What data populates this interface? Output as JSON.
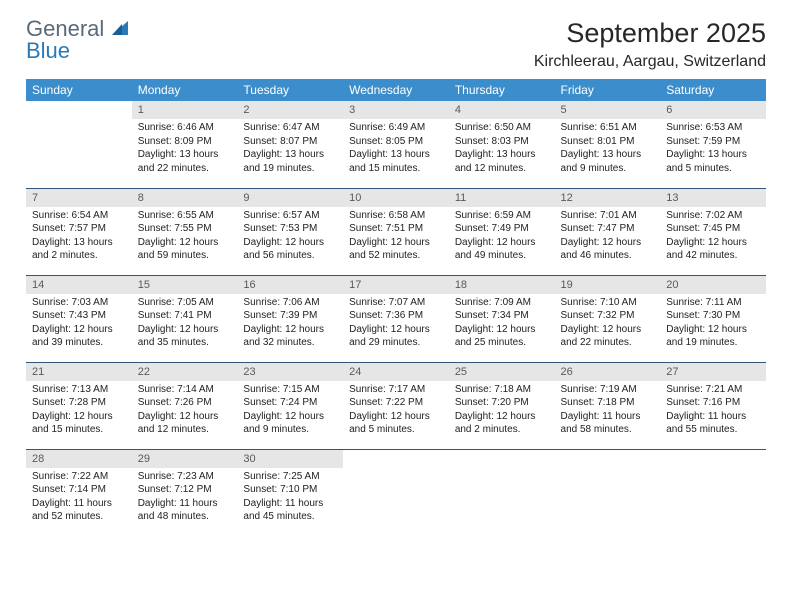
{
  "logo": {
    "word1": "General",
    "word2": "Blue",
    "text_color": "#5a6a78",
    "accent_color": "#2a7ab8"
  },
  "title": "September 2025",
  "location": "Kirchleerau, Aargau, Switzerland",
  "colors": {
    "header_bg": "#3c8dcc",
    "header_text": "#ffffff",
    "daynum_bg": "#e6e6e6",
    "daynum_text": "#5a5a5a",
    "row_border": "#31567a",
    "body_text": "#222222",
    "page_bg": "#ffffff"
  },
  "weekdays": [
    "Sunday",
    "Monday",
    "Tuesday",
    "Wednesday",
    "Thursday",
    "Friday",
    "Saturday"
  ],
  "weeks": [
    [
      {
        "day": "",
        "sunrise": "",
        "sunset": "",
        "daylight": ""
      },
      {
        "day": "1",
        "sunrise": "Sunrise: 6:46 AM",
        "sunset": "Sunset: 8:09 PM",
        "daylight": "Daylight: 13 hours and 22 minutes."
      },
      {
        "day": "2",
        "sunrise": "Sunrise: 6:47 AM",
        "sunset": "Sunset: 8:07 PM",
        "daylight": "Daylight: 13 hours and 19 minutes."
      },
      {
        "day": "3",
        "sunrise": "Sunrise: 6:49 AM",
        "sunset": "Sunset: 8:05 PM",
        "daylight": "Daylight: 13 hours and 15 minutes."
      },
      {
        "day": "4",
        "sunrise": "Sunrise: 6:50 AM",
        "sunset": "Sunset: 8:03 PM",
        "daylight": "Daylight: 13 hours and 12 minutes."
      },
      {
        "day": "5",
        "sunrise": "Sunrise: 6:51 AM",
        "sunset": "Sunset: 8:01 PM",
        "daylight": "Daylight: 13 hours and 9 minutes."
      },
      {
        "day": "6",
        "sunrise": "Sunrise: 6:53 AM",
        "sunset": "Sunset: 7:59 PM",
        "daylight": "Daylight: 13 hours and 5 minutes."
      }
    ],
    [
      {
        "day": "7",
        "sunrise": "Sunrise: 6:54 AM",
        "sunset": "Sunset: 7:57 PM",
        "daylight": "Daylight: 13 hours and 2 minutes."
      },
      {
        "day": "8",
        "sunrise": "Sunrise: 6:55 AM",
        "sunset": "Sunset: 7:55 PM",
        "daylight": "Daylight: 12 hours and 59 minutes."
      },
      {
        "day": "9",
        "sunrise": "Sunrise: 6:57 AM",
        "sunset": "Sunset: 7:53 PM",
        "daylight": "Daylight: 12 hours and 56 minutes."
      },
      {
        "day": "10",
        "sunrise": "Sunrise: 6:58 AM",
        "sunset": "Sunset: 7:51 PM",
        "daylight": "Daylight: 12 hours and 52 minutes."
      },
      {
        "day": "11",
        "sunrise": "Sunrise: 6:59 AM",
        "sunset": "Sunset: 7:49 PM",
        "daylight": "Daylight: 12 hours and 49 minutes."
      },
      {
        "day": "12",
        "sunrise": "Sunrise: 7:01 AM",
        "sunset": "Sunset: 7:47 PM",
        "daylight": "Daylight: 12 hours and 46 minutes."
      },
      {
        "day": "13",
        "sunrise": "Sunrise: 7:02 AM",
        "sunset": "Sunset: 7:45 PM",
        "daylight": "Daylight: 12 hours and 42 minutes."
      }
    ],
    [
      {
        "day": "14",
        "sunrise": "Sunrise: 7:03 AM",
        "sunset": "Sunset: 7:43 PM",
        "daylight": "Daylight: 12 hours and 39 minutes."
      },
      {
        "day": "15",
        "sunrise": "Sunrise: 7:05 AM",
        "sunset": "Sunset: 7:41 PM",
        "daylight": "Daylight: 12 hours and 35 minutes."
      },
      {
        "day": "16",
        "sunrise": "Sunrise: 7:06 AM",
        "sunset": "Sunset: 7:39 PM",
        "daylight": "Daylight: 12 hours and 32 minutes."
      },
      {
        "day": "17",
        "sunrise": "Sunrise: 7:07 AM",
        "sunset": "Sunset: 7:36 PM",
        "daylight": "Daylight: 12 hours and 29 minutes."
      },
      {
        "day": "18",
        "sunrise": "Sunrise: 7:09 AM",
        "sunset": "Sunset: 7:34 PM",
        "daylight": "Daylight: 12 hours and 25 minutes."
      },
      {
        "day": "19",
        "sunrise": "Sunrise: 7:10 AM",
        "sunset": "Sunset: 7:32 PM",
        "daylight": "Daylight: 12 hours and 22 minutes."
      },
      {
        "day": "20",
        "sunrise": "Sunrise: 7:11 AM",
        "sunset": "Sunset: 7:30 PM",
        "daylight": "Daylight: 12 hours and 19 minutes."
      }
    ],
    [
      {
        "day": "21",
        "sunrise": "Sunrise: 7:13 AM",
        "sunset": "Sunset: 7:28 PM",
        "daylight": "Daylight: 12 hours and 15 minutes."
      },
      {
        "day": "22",
        "sunrise": "Sunrise: 7:14 AM",
        "sunset": "Sunset: 7:26 PM",
        "daylight": "Daylight: 12 hours and 12 minutes."
      },
      {
        "day": "23",
        "sunrise": "Sunrise: 7:15 AM",
        "sunset": "Sunset: 7:24 PM",
        "daylight": "Daylight: 12 hours and 9 minutes."
      },
      {
        "day": "24",
        "sunrise": "Sunrise: 7:17 AM",
        "sunset": "Sunset: 7:22 PM",
        "daylight": "Daylight: 12 hours and 5 minutes."
      },
      {
        "day": "25",
        "sunrise": "Sunrise: 7:18 AM",
        "sunset": "Sunset: 7:20 PM",
        "daylight": "Daylight: 12 hours and 2 minutes."
      },
      {
        "day": "26",
        "sunrise": "Sunrise: 7:19 AM",
        "sunset": "Sunset: 7:18 PM",
        "daylight": "Daylight: 11 hours and 58 minutes."
      },
      {
        "day": "27",
        "sunrise": "Sunrise: 7:21 AM",
        "sunset": "Sunset: 7:16 PM",
        "daylight": "Daylight: 11 hours and 55 minutes."
      }
    ],
    [
      {
        "day": "28",
        "sunrise": "Sunrise: 7:22 AM",
        "sunset": "Sunset: 7:14 PM",
        "daylight": "Daylight: 11 hours and 52 minutes."
      },
      {
        "day": "29",
        "sunrise": "Sunrise: 7:23 AM",
        "sunset": "Sunset: 7:12 PM",
        "daylight": "Daylight: 11 hours and 48 minutes."
      },
      {
        "day": "30",
        "sunrise": "Sunrise: 7:25 AM",
        "sunset": "Sunset: 7:10 PM",
        "daylight": "Daylight: 11 hours and 45 minutes."
      },
      {
        "day": "",
        "sunrise": "",
        "sunset": "",
        "daylight": ""
      },
      {
        "day": "",
        "sunrise": "",
        "sunset": "",
        "daylight": ""
      },
      {
        "day": "",
        "sunrise": "",
        "sunset": "",
        "daylight": ""
      },
      {
        "day": "",
        "sunrise": "",
        "sunset": "",
        "daylight": ""
      }
    ]
  ]
}
